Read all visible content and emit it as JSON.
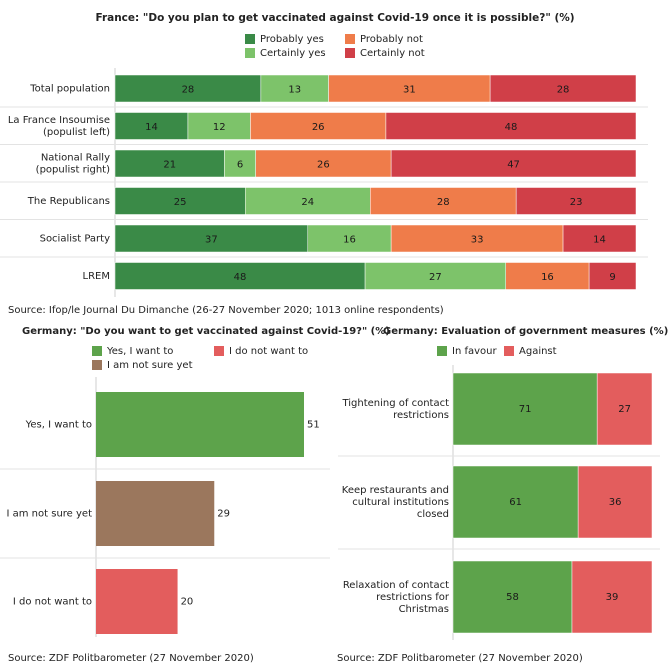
{
  "chart_data": [
    {
      "type": "bar",
      "orientation": "horizontal",
      "stacked": true,
      "title": "France: \"Do you plan to get vaccinated against Covid-19 once it is possible?\" (%)",
      "categories": [
        [
          "Total population"
        ],
        [
          "La France Insoumise",
          "(populist left)"
        ],
        [
          "National Rally",
          "(populist right)"
        ],
        [
          "The Republicans"
        ],
        [
          "Socialist Party"
        ],
        [
          "LREM"
        ]
      ],
      "series": [
        {
          "name": "Probably yes",
          "color": "#3a8a47",
          "values": [
            28,
            14,
            21,
            25,
            37,
            48
          ]
        },
        {
          "name": "Certainly yes",
          "color": "#7dc36a",
          "values": [
            13,
            12,
            6,
            24,
            16,
            27
          ]
        },
        {
          "name": "Probably not",
          "color": "#ef7c4a",
          "values": [
            31,
            26,
            26,
            28,
            33,
            16
          ]
        },
        {
          "name": "Certainly not",
          "color": "#d03f48",
          "values": [
            28,
            48,
            47,
            23,
            14,
            9
          ]
        }
      ],
      "legend": "top",
      "source": "Source: Ifop/le Journal Du Dimanche (26-27 November 2020; 1013 online respondents)"
    },
    {
      "type": "bar",
      "orientation": "horizontal",
      "title": "Germany: \"Do you want to get vaccinated against Covid-19?\" (%)",
      "categories": [
        [
          "Yes, I want to"
        ],
        [
          "I am not sure yet"
        ],
        [
          "I do not want to"
        ]
      ],
      "values": [
        51,
        29,
        20
      ],
      "colors": [
        "#5da34b",
        "#9b775d",
        "#e35d5d"
      ],
      "legend": [
        {
          "name": "Yes, I want to",
          "color": "#5da34b"
        },
        {
          "name": "I do not want to",
          "color": "#e35d5d"
        },
        {
          "name": "I am not sure yet",
          "color": "#9b775d"
        }
      ],
      "xlim": [
        0,
        51
      ],
      "source": "Source: ZDF Politbarometer (27 November 2020)"
    },
    {
      "type": "bar",
      "orientation": "horizontal",
      "stacked": true,
      "title": "Germany: Evaluation of government measures (%)",
      "categories": [
        [
          "Tightening of contact",
          "restrictions"
        ],
        [
          "Keep restaurants and",
          "cultural institutions",
          "closed"
        ],
        [
          "Relaxation of contact",
          "restrictions for",
          "Christmas"
        ]
      ],
      "series": [
        {
          "name": "In favour",
          "color": "#5da34b",
          "values": [
            71,
            61,
            58
          ]
        },
        {
          "name": "Against",
          "color": "#e35d5d",
          "values": [
            27,
            36,
            39
          ]
        }
      ],
      "legend": "top",
      "source": "Source: ZDF Politbarometer (27 November 2020)"
    }
  ]
}
